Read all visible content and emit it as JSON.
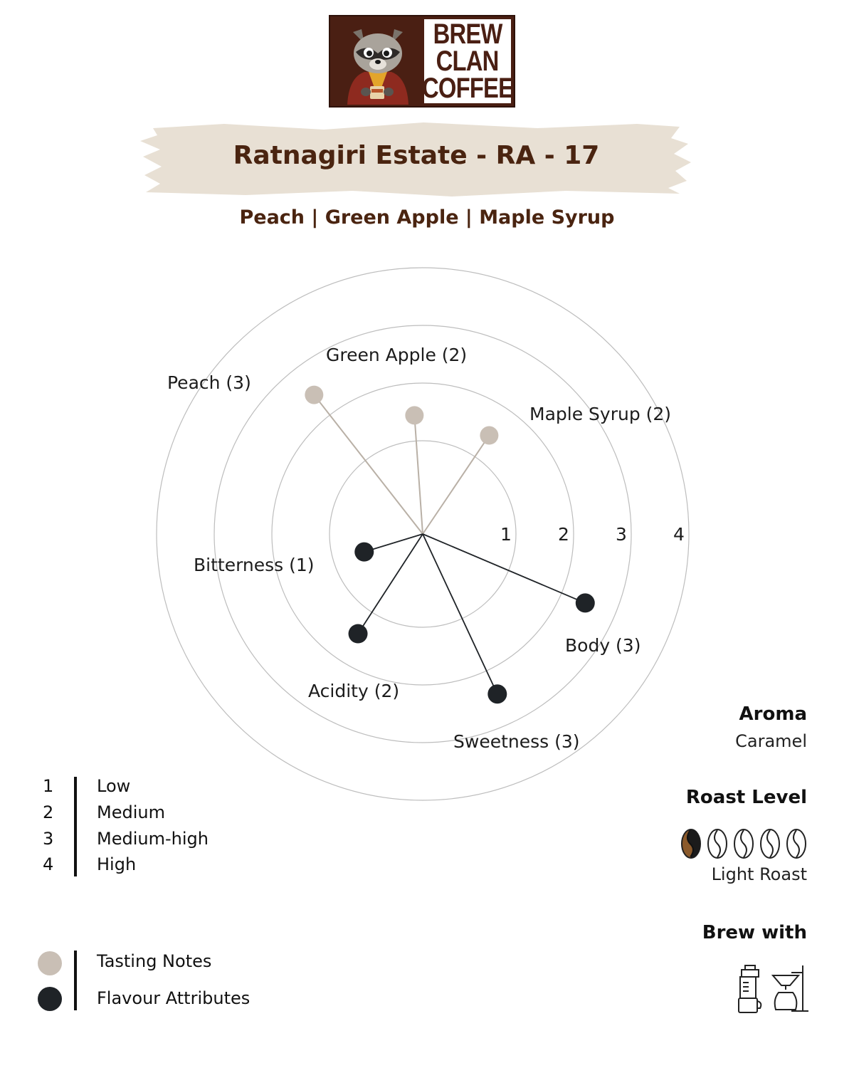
{
  "brand": {
    "name_lines": [
      "BREW",
      "CLAN",
      "COFFEE"
    ],
    "logo_bg": "#4a1f13"
  },
  "title": "Ratnagiri Estate - RA - 17",
  "subtitle": "Peach | Green Apple | Maple Syrup",
  "chart_data": {
    "type": "radar",
    "r_range": [
      0,
      4
    ],
    "ring_labels": [
      "1",
      "2",
      "3",
      "4"
    ],
    "series": [
      {
        "name": "Tasting Notes",
        "color": "#c9bfb5",
        "points": [
          {
            "label": "Peach (3)",
            "value": 3,
            "angle_deg": 128
          },
          {
            "label": "Green Apple (2)",
            "value": 2,
            "angle_deg": 94
          },
          {
            "label": "Maple Syrup (2)",
            "value": 2,
            "angle_deg": 56
          }
        ]
      },
      {
        "name": "Flavour Attributes",
        "color": "#1f2327",
        "points": [
          {
            "label": "Bitterness (1)",
            "value": 1,
            "angle_deg": 197
          },
          {
            "label": "Body (3)",
            "value": 3,
            "angle_deg": 337
          },
          {
            "label": "Acidity (2)",
            "value": 2,
            "angle_deg": 237
          },
          {
            "label": "Sweetness (3)",
            "value": 3,
            "angle_deg": 295
          }
        ]
      }
    ]
  },
  "scale_legend": [
    {
      "num": "1",
      "text": "Low"
    },
    {
      "num": "2",
      "text": "Medium"
    },
    {
      "num": "3",
      "text": "Medium-high"
    },
    {
      "num": "4",
      "text": "High"
    }
  ],
  "key_legend": [
    {
      "text": "Tasting Notes",
      "color": "#c9bfb5"
    },
    {
      "text": "Flavour Attributes",
      "color": "#1f2327"
    }
  ],
  "aroma": {
    "heading": "Aroma",
    "value": "Caramel"
  },
  "roast": {
    "heading": "Roast Level",
    "value": "Light Roast",
    "level": 1,
    "max": 5
  },
  "brew": {
    "heading": "Brew with",
    "icons": [
      "aeropress-icon",
      "pour-over-icon"
    ]
  }
}
